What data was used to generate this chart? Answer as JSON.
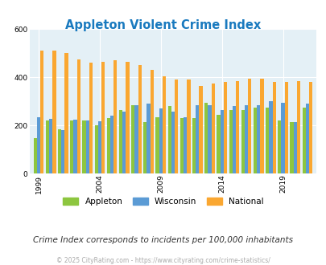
{
  "title": "Appleton Violent Crime Index",
  "title_color": "#1a7abf",
  "subtitle": "Crime Index corresponds to incidents per 100,000 inhabitants",
  "footer": "© 2025 CityRating.com - https://www.cityrating.com/crime-statistics/",
  "years": [
    1999,
    2000,
    2001,
    2002,
    2003,
    2004,
    2005,
    2006,
    2007,
    2008,
    2009,
    2010,
    2011,
    2012,
    2013,
    2014,
    2015,
    2016,
    2017,
    2018,
    2019,
    2020,
    2021
  ],
  "appleton": [
    148,
    220,
    185,
    220,
    222,
    200,
    230,
    265,
    285,
    215,
    235,
    280,
    230,
    230,
    295,
    245,
    265,
    265,
    275,
    275,
    220,
    215,
    275
  ],
  "wisconsin": [
    235,
    228,
    182,
    225,
    220,
    218,
    240,
    258,
    285,
    290,
    270,
    258,
    235,
    285,
    285,
    265,
    280,
    285,
    285,
    300,
    295,
    215,
    290
  ],
  "national": [
    510,
    510,
    500,
    475,
    460,
    465,
    470,
    465,
    450,
    430,
    405,
    390,
    390,
    365,
    375,
    380,
    385,
    395,
    395,
    380,
    380,
    385,
    380
  ],
  "appleton_color": "#8dc63f",
  "wisconsin_color": "#5b9bd5",
  "national_color": "#faa731",
  "bg_color": "#ffffff",
  "plot_bg": "#e4f0f6",
  "ylim": [
    0,
    600
  ],
  "yticks": [
    0,
    200,
    400,
    600
  ],
  "grid_color": "#ffffff",
  "bar_width": 0.28,
  "legend_labels": [
    "Appleton",
    "Wisconsin",
    "National"
  ],
  "subtitle_color": "#333333",
  "footer_color": "#aaaaaa"
}
